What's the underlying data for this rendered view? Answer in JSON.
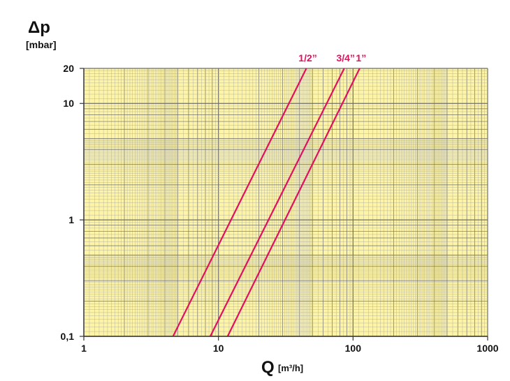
{
  "chart_data": {
    "type": "line",
    "title": "",
    "ylabel": "Δp",
    "ylabel_unit": "[mbar]",
    "xlabel": "Q",
    "xlabel_unit": "[m³/h]",
    "x_scale": "log",
    "y_scale": "log",
    "xlim": [
      1,
      1000
    ],
    "ylim": [
      0.1,
      20
    ],
    "grid": true,
    "x_ticks": [
      "1",
      "10",
      "100",
      "1000"
    ],
    "x_tick_values": [
      1,
      10,
      100,
      1000
    ],
    "y_ticks": [
      "0,1",
      "1",
      "10",
      "20"
    ],
    "y_tick_values": [
      0.1,
      1,
      10,
      20
    ],
    "series": [
      {
        "name": "1/2”",
        "x": [
          4.6,
          45
        ],
        "y": [
          0.1,
          20
        ]
      },
      {
        "name": "3/4”",
        "x": [
          8.7,
          86
        ],
        "y": [
          0.1,
          20
        ]
      },
      {
        "name": "1”",
        "x": [
          11.7,
          112
        ],
        "y": [
          0.1,
          20
        ]
      }
    ],
    "colors": {
      "background": "#fdf4a8",
      "grid_minor": "#a8a8a0",
      "grid_major": "#6f6f6a",
      "series": "#e0105e",
      "label": "#e0105e"
    }
  }
}
